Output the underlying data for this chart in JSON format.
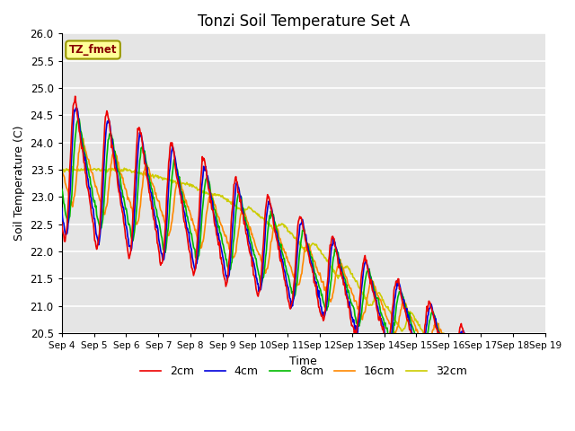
{
  "title": "Tonzi Soil Temperature Set A",
  "xlabel": "Time",
  "ylabel": "Soil Temperature (C)",
  "ylim": [
    20.5,
    26.0
  ],
  "yticks": [
    20.5,
    21.0,
    21.5,
    22.0,
    22.5,
    23.0,
    23.5,
    24.0,
    24.5,
    25.0,
    25.5,
    26.0
  ],
  "bg_color": "#e5e5e5",
  "fig_color": "#ffffff",
  "annotation_text": "TZ_fmet",
  "annotation_bg": "#ffff99",
  "annotation_border": "#999900",
  "series": {
    "2cm": {
      "color": "#ee0000",
      "lw": 1.2
    },
    "4cm": {
      "color": "#0000dd",
      "lw": 1.2
    },
    "8cm": {
      "color": "#00bb00",
      "lw": 1.2
    },
    "16cm": {
      "color": "#ff8800",
      "lw": 1.2
    },
    "32cm": {
      "color": "#cccc00",
      "lw": 1.2
    }
  },
  "xticklabels": [
    "Sep 4",
    "Sep 5",
    "Sep 6",
    "Sep 7",
    "Sep 8",
    "Sep 9",
    "Sep 10",
    "Sep 11",
    "Sep 12",
    "Sep 13",
    "Sep 14",
    "Sep 15",
    "Sep 16",
    "Sep 17",
    "Sep 18",
    "Sep 19"
  ],
  "days": 15
}
